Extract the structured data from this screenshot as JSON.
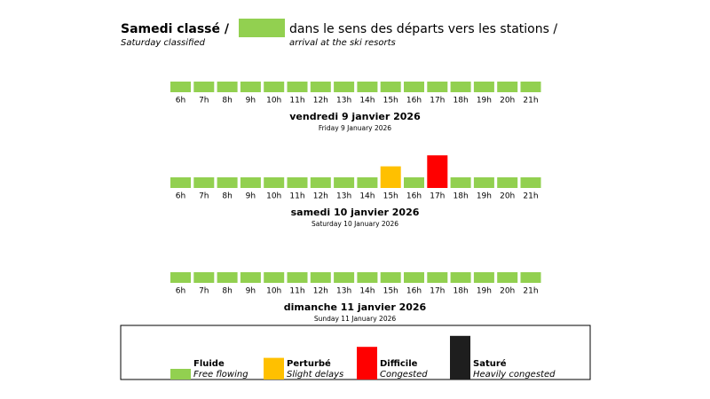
{
  "header": {
    "title_fr": "Samedi classé /",
    "title_en": "Saturday classified",
    "desc_fr": "dans le sens des départs vers les stations /",
    "desc_en": "arrival at the ski resorts"
  },
  "hours": [
    "6h",
    "7h",
    "8h",
    "9h",
    "10h",
    "11h",
    "12h",
    "13h",
    "14h",
    "15h",
    "16h",
    "17h",
    "18h",
    "19h",
    "20h",
    "21h"
  ],
  "days": [
    {
      "title": "vendredi 9 janvier 2026",
      "subtitle": "Friday 9 January 2026",
      "levels": [
        0,
        0,
        0,
        0,
        0,
        0,
        0,
        0,
        0,
        0,
        0,
        0,
        0,
        0,
        0,
        0
      ]
    },
    {
      "title": "samedi 10 janvier 2026",
      "subtitle": "Saturday 10 January 2026",
      "levels": [
        0,
        0,
        0,
        0,
        0,
        0,
        0,
        0,
        0,
        1,
        0,
        2,
        0,
        0,
        0,
        0
      ]
    },
    {
      "title": "dimanche 11 janvier 2026",
      "subtitle": "Sunday 11 January 2026",
      "levels": [
        0,
        0,
        0,
        0,
        0,
        0,
        0,
        0,
        0,
        0,
        0,
        0,
        0,
        0,
        0,
        0
      ]
    }
  ],
  "legend": [
    {
      "label": "Fluide",
      "sublabel": "Free flowing",
      "color": "#92d050"
    },
    {
      "label": "Perturbé",
      "sublabel": "Slight delays",
      "color": "#ffc000"
    },
    {
      "label": "Difficile",
      "sublabel": "Congested",
      "color": "#ff0000"
    },
    {
      "label": "Saturé",
      "sublabel": "Heavily congested",
      "color": "#1e1e1e"
    }
  ]
}
